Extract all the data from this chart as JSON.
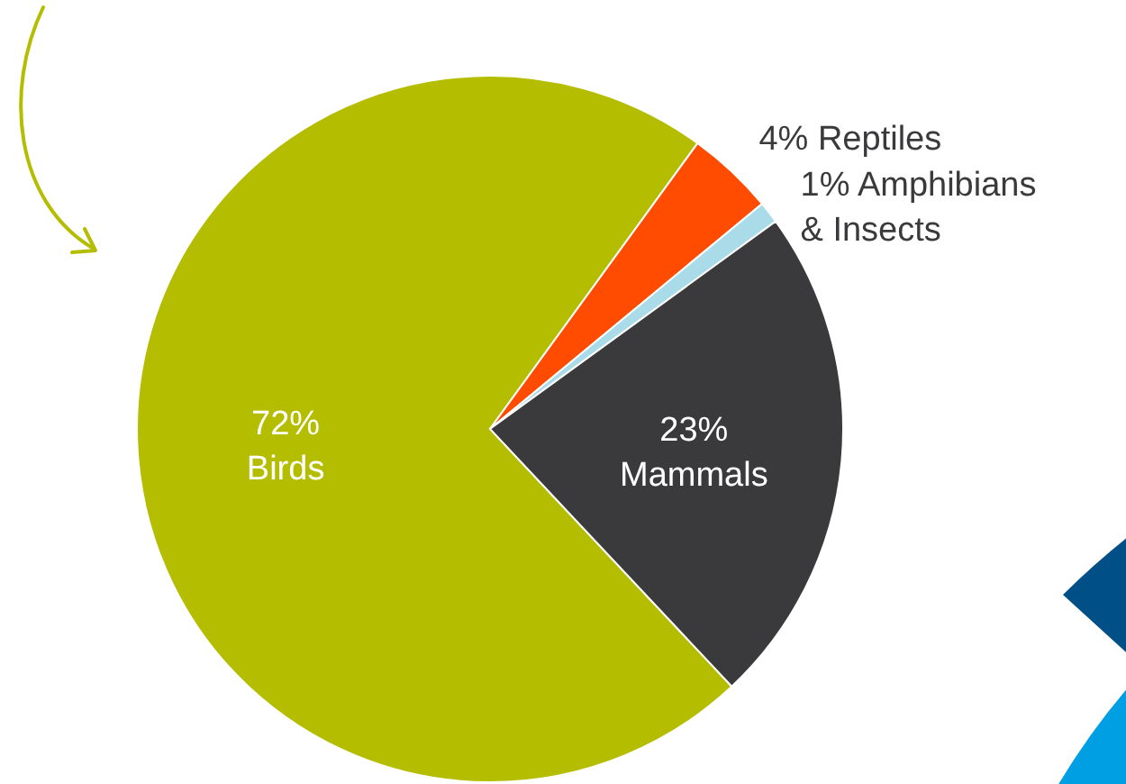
{
  "chart_data": {
    "type": "pie",
    "categories": [
      "Birds",
      "Reptiles",
      "Amphibians & Insects",
      "Mammals"
    ],
    "values": [
      72,
      4,
      1,
      23
    ],
    "colors": [
      "#b5bd00",
      "#ff4c00",
      "#a9dbe8",
      "#3a3a3c"
    ],
    "value_labels": [
      "72%",
      "4%",
      "1%",
      "23%"
    ]
  }
}
